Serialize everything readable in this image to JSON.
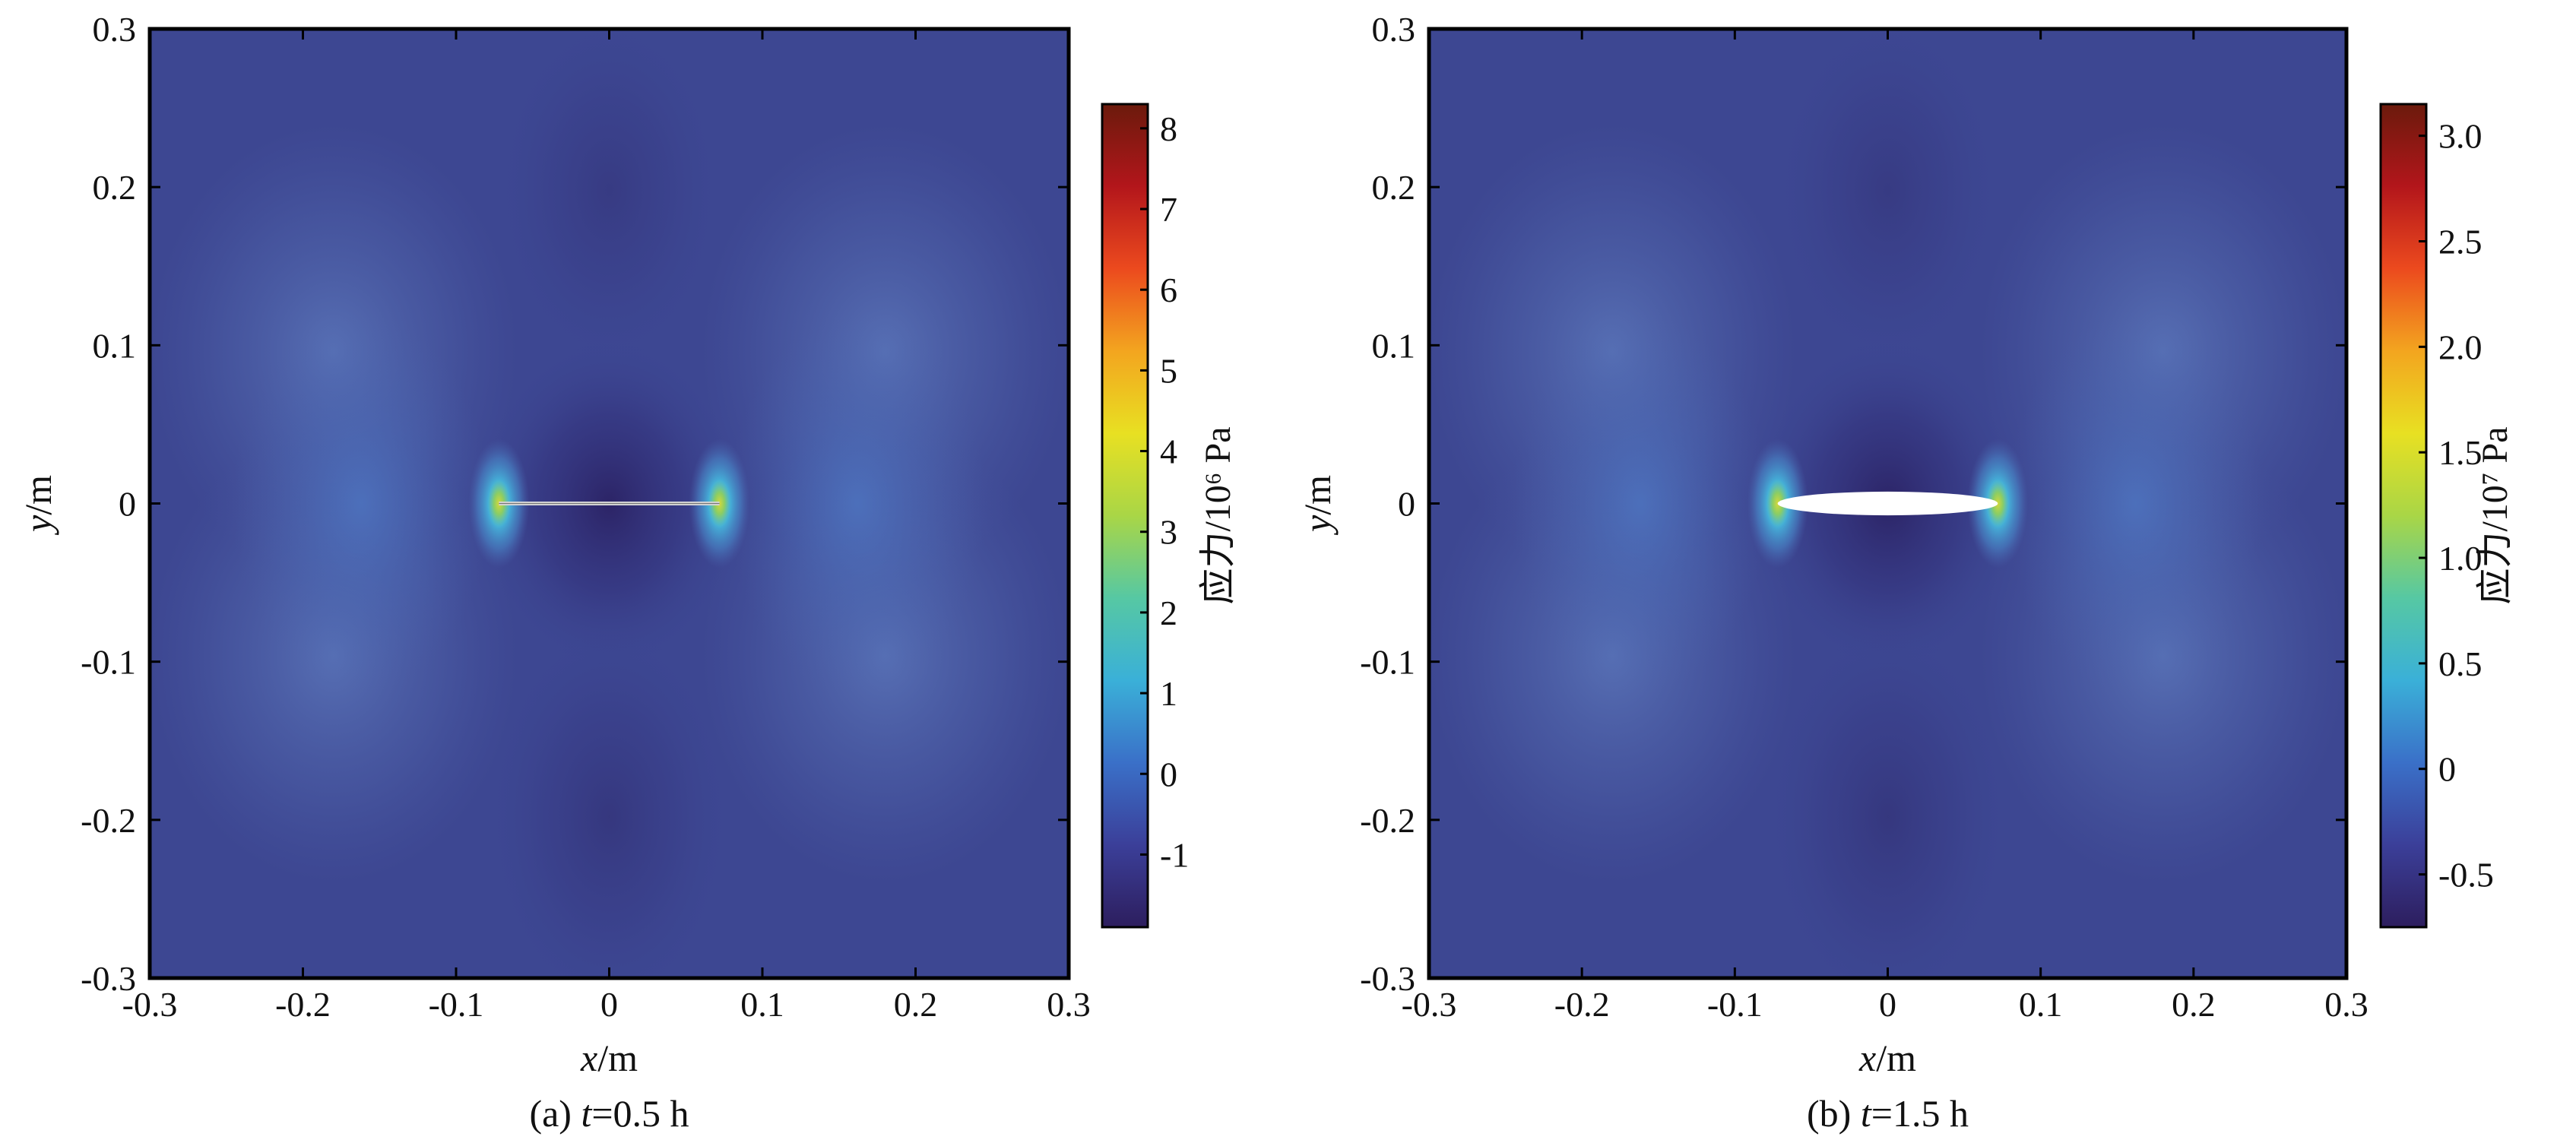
{
  "chart_data": [
    {
      "type": "heatmap",
      "caption_prefix": "(a) ",
      "caption_var": "t",
      "caption_suffix": "=0.5 h",
      "xlabel_var": "x",
      "xlabel_unit": "/m",
      "ylabel_var": "y",
      "ylabel_unit": "/m",
      "xlim": [
        -0.3,
        0.3
      ],
      "ylim": [
        -0.3,
        0.3
      ],
      "xticks": [
        -0.3,
        -0.2,
        -0.1,
        0,
        0.1,
        0.2,
        0.3
      ],
      "xtick_labels": [
        "-0.3",
        "-0.2",
        "-0.1",
        "0",
        "0.1",
        "0.2",
        "0.3"
      ],
      "yticks": [
        0.3,
        0.2,
        0.1,
        0,
        -0.1,
        -0.2,
        -0.3
      ],
      "ytick_labels": [
        "0.3",
        "0.2",
        "0.1",
        "0",
        "-0.1",
        "-0.2",
        "-0.3"
      ],
      "crack": {
        "shape": "line",
        "x_start": -0.072,
        "x_end": 0.072,
        "half_height": 0.0
      },
      "colorbar": {
        "label": "应力/10⁶ Pa",
        "range": [
          -1.9,
          8.3
        ],
        "ticks": [
          8,
          7,
          6,
          5,
          4,
          3,
          2,
          1,
          0,
          -1
        ],
        "tick_labels": [
          "8",
          "7",
          "6",
          "5",
          "4",
          "3",
          "2",
          "1",
          "0",
          "-1"
        ],
        "colormap": [
          "#2d1e5e",
          "#3b3f99",
          "#3a70c8",
          "#3ab0d8",
          "#56c8a3",
          "#a9d646",
          "#e8e022",
          "#f3a51f",
          "#ec4a1e",
          "#b3161b",
          "#6b1a0c"
        ]
      },
      "field_background": "#3d4792"
    },
    {
      "type": "heatmap",
      "caption_prefix": "(b) ",
      "caption_var": "t",
      "caption_suffix": "=1.5 h",
      "xlabel_var": "x",
      "xlabel_unit": "/m",
      "ylabel_var": "y",
      "ylabel_unit": "/m",
      "xlim": [
        -0.3,
        0.3
      ],
      "ylim": [
        -0.3,
        0.3
      ],
      "xticks": [
        -0.3,
        -0.2,
        -0.1,
        0,
        0.1,
        0.2,
        0.3
      ],
      "xtick_labels": [
        "-0.3",
        "-0.2",
        "-0.1",
        "0",
        "0.1",
        "0.2",
        "0.3"
      ],
      "yticks": [
        0.3,
        0.2,
        0.1,
        0,
        -0.1,
        -0.2,
        -0.3
      ],
      "ytick_labels": [
        "0.3",
        "0.2",
        "0.1",
        "0",
        "-0.1",
        "-0.2",
        "-0.3"
      ],
      "crack": {
        "shape": "ellipse",
        "x_start": -0.072,
        "x_end": 0.072,
        "half_height": 0.0075
      },
      "colorbar": {
        "label": "应力/10⁷ Pa",
        "range": [
          -0.75,
          3.15
        ],
        "ticks": [
          3.0,
          2.5,
          2.0,
          1.5,
          1.0,
          0.5,
          0,
          -0.5
        ],
        "tick_labels": [
          "3.0",
          "2.5",
          "2.0",
          "1.5",
          "1.0",
          "0.5",
          "0",
          "-0.5"
        ],
        "colormap": [
          "#2d1e5e",
          "#3b3f99",
          "#3a70c8",
          "#3ab0d8",
          "#56c8a3",
          "#a9d646",
          "#e8e022",
          "#f3a51f",
          "#ec4a1e",
          "#b3161b",
          "#6b1a0c"
        ]
      },
      "field_background": "#3d4792"
    }
  ]
}
